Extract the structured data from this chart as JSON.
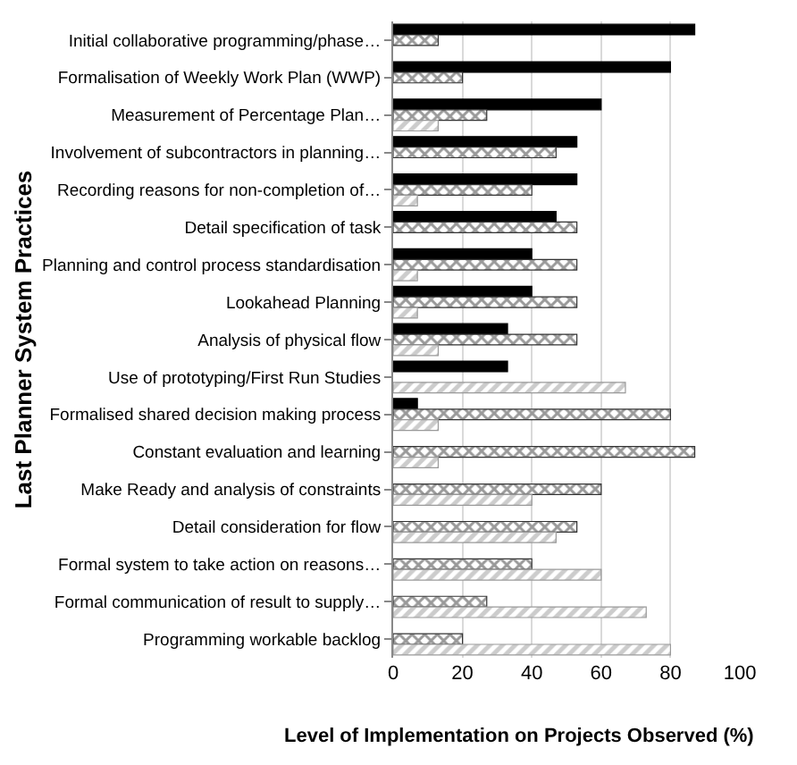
{
  "chart_data": {
    "type": "bar",
    "orientation": "horizontal",
    "xlabel": "Level of Implementation on Projects Observed (%)",
    "ylabel": "Last Planner System Practices",
    "categories": [
      "Initial collaborative programming/phase…",
      "Formalisation of Weekly Work Plan (WWP)",
      "Measurement of Percentage Plan…",
      "Involvement of subcontractors in planning…",
      "Recording reasons for non-completion of…",
      "Detail specification of task",
      "Planning and control process standardisation",
      "Lookahead Planning",
      "Analysis of physical flow",
      "Use of prototyping/First Run Studies",
      "Formalised shared decision making process",
      "Constant evaluation and learning",
      "Make Ready and analysis of constraints",
      "Detail consideration for flow",
      "Formal system to take action on reasons…",
      "Formal communication of result to supply…",
      "Programming workable backlog"
    ],
    "series": [
      {
        "color": "#000000",
        "values": [
          87,
          80,
          60,
          53,
          53,
          47,
          40,
          40,
          33,
          33,
          7,
          null,
          null,
          null,
          null,
          null,
          null
        ]
      },
      {
        "color": "#333333",
        "values": [
          13,
          20,
          27,
          47,
          40,
          53,
          53,
          53,
          53,
          null,
          80,
          87,
          60,
          53,
          40,
          27,
          20
        ]
      },
      {
        "color": "#999999",
        "values": [
          null,
          null,
          13,
          null,
          7,
          null,
          7,
          7,
          13,
          67,
          13,
          13,
          40,
          47,
          60,
          73,
          80
        ]
      }
    ],
    "xlim": [
      0,
      100
    ],
    "xticks": [
      0,
      20,
      40,
      60,
      80,
      100
    ],
    "grid": "x"
  }
}
